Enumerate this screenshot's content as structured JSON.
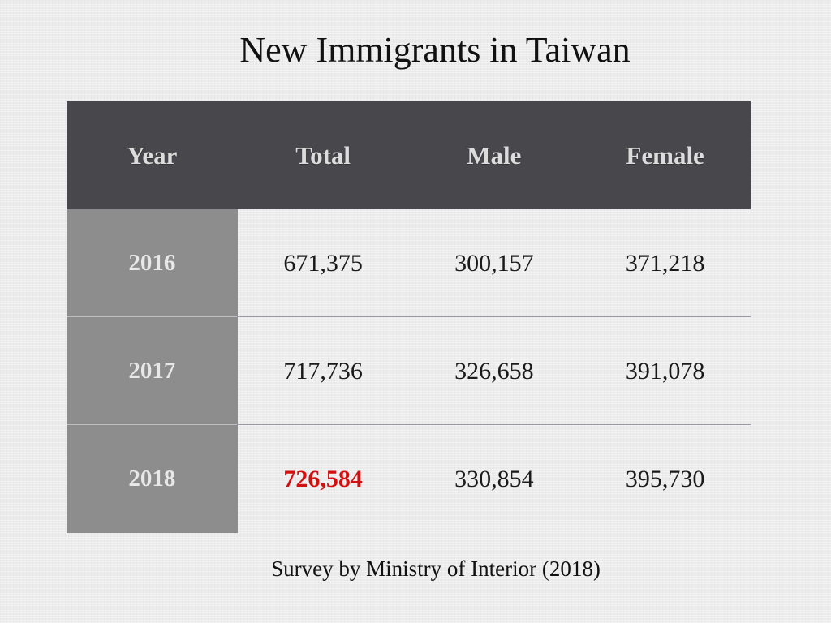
{
  "title": "New Immigrants in Taiwan",
  "table": {
    "headers": [
      "Year",
      "Total",
      "Male",
      "Female"
    ],
    "rows": [
      {
        "year": "2016",
        "total": "671,375",
        "male": "300,157",
        "female": "371,218"
      },
      {
        "year": "2017",
        "total": "717,736",
        "male": "326,658",
        "female": "391,078"
      },
      {
        "year": "2018",
        "total": "726,584",
        "male": "330,854",
        "female": "395,730"
      }
    ],
    "highlight_color": "#d40f0f"
  },
  "footer": "Survey by Ministry of Interior (2018)"
}
